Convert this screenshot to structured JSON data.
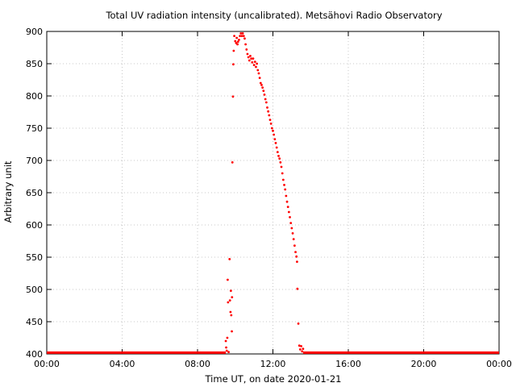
{
  "chart_data": {
    "type": "scatter",
    "title": "Total UV radiation intensity (uncalibrated). Metsähovi Radio Observatory",
    "xlabel": "Time UT, on date 2020-01-21",
    "ylabel": "Arbitrary unit",
    "x_unit": "hours UT",
    "xlim": [
      0,
      24
    ],
    "ylim": [
      400,
      900
    ],
    "x_ticks": [
      {
        "value": 0,
        "label": "00:00"
      },
      {
        "value": 4,
        "label": "04:00"
      },
      {
        "value": 8,
        "label": "08:00"
      },
      {
        "value": 12,
        "label": "12:00"
      },
      {
        "value": 16,
        "label": "16:00"
      },
      {
        "value": 20,
        "label": "20:00"
      },
      {
        "value": 24,
        "label": "00:00"
      }
    ],
    "y_ticks": [
      {
        "value": 400,
        "label": "400"
      },
      {
        "value": 450,
        "label": "450"
      },
      {
        "value": 500,
        "label": "500"
      },
      {
        "value": 550,
        "label": "550"
      },
      {
        "value": 600,
        "label": "600"
      },
      {
        "value": 650,
        "label": "650"
      },
      {
        "value": 700,
        "label": "700"
      },
      {
        "value": 750,
        "label": "750"
      },
      {
        "value": 800,
        "label": "800"
      },
      {
        "value": 850,
        "label": "850"
      },
      {
        "value": 900,
        "label": "900"
      }
    ],
    "grid": true,
    "marker_color": "#ff0000",
    "series": [
      {
        "baseline_level": 402,
        "baseline_ranges": [
          [
            0.0,
            9.5
          ],
          [
            13.6,
            24.0
          ]
        ],
        "points": [
          [
            9.5,
            420
          ],
          [
            9.52,
            410
          ],
          [
            9.55,
            405
          ],
          [
            9.58,
            425
          ],
          [
            9.6,
            515
          ],
          [
            9.62,
            480
          ],
          [
            9.65,
            403
          ],
          [
            9.7,
            547
          ],
          [
            9.72,
            483
          ],
          [
            9.75,
            465
          ],
          [
            9.77,
            498
          ],
          [
            9.79,
            460
          ],
          [
            9.82,
            435
          ],
          [
            9.83,
            488
          ],
          [
            9.85,
            697
          ],
          [
            9.88,
            799
          ],
          [
            9.9,
            849
          ],
          [
            9.92,
            870
          ],
          [
            9.95,
            893
          ],
          [
            10.0,
            885
          ],
          [
            10.05,
            882
          ],
          [
            10.08,
            890
          ],
          [
            10.12,
            880
          ],
          [
            10.15,
            884
          ],
          [
            10.2,
            887
          ],
          [
            10.25,
            893
          ],
          [
            10.3,
            897
          ],
          [
            10.35,
            893
          ],
          [
            10.4,
            897
          ],
          [
            10.45,
            893
          ],
          [
            10.5,
            889
          ],
          [
            10.55,
            880
          ],
          [
            10.6,
            872
          ],
          [
            10.65,
            865
          ],
          [
            10.7,
            860
          ],
          [
            10.75,
            855
          ],
          [
            10.8,
            862
          ],
          [
            10.85,
            858
          ],
          [
            10.9,
            852
          ],
          [
            10.95,
            858
          ],
          [
            11.0,
            848
          ],
          [
            11.05,
            853
          ],
          [
            11.1,
            845
          ],
          [
            11.15,
            850
          ],
          [
            11.2,
            840
          ],
          [
            11.25,
            835
          ],
          [
            11.3,
            828
          ],
          [
            11.35,
            820
          ],
          [
            11.4,
            817
          ],
          [
            11.45,
            813
          ],
          [
            11.5,
            808
          ],
          [
            11.55,
            802
          ],
          [
            11.6,
            795
          ],
          [
            11.65,
            790
          ],
          [
            11.7,
            782
          ],
          [
            11.75,
            776
          ],
          [
            11.8,
            770
          ],
          [
            11.85,
            763
          ],
          [
            11.9,
            757
          ],
          [
            11.95,
            750
          ],
          [
            12.0,
            746
          ],
          [
            12.05,
            740
          ],
          [
            12.1,
            733
          ],
          [
            12.15,
            727
          ],
          [
            12.2,
            720
          ],
          [
            12.25,
            713
          ],
          [
            12.3,
            707
          ],
          [
            12.35,
            703
          ],
          [
            12.4,
            697
          ],
          [
            12.45,
            690
          ],
          [
            12.5,
            680
          ],
          [
            12.55,
            670
          ],
          [
            12.6,
            662
          ],
          [
            12.65,
            655
          ],
          [
            12.7,
            645
          ],
          [
            12.75,
            636
          ],
          [
            12.8,
            628
          ],
          [
            12.85,
            620
          ],
          [
            12.9,
            612
          ],
          [
            12.95,
            603
          ],
          [
            13.0,
            595
          ],
          [
            13.05,
            587
          ],
          [
            13.1,
            578
          ],
          [
            13.15,
            568
          ],
          [
            13.2,
            558
          ],
          [
            13.25,
            551
          ],
          [
            13.28,
            543
          ],
          [
            13.3,
            501
          ],
          [
            13.35,
            447
          ],
          [
            13.4,
            413
          ],
          [
            13.45,
            407
          ],
          [
            13.5,
            412
          ],
          [
            13.55,
            404
          ],
          [
            13.6,
            408
          ]
        ]
      }
    ]
  }
}
